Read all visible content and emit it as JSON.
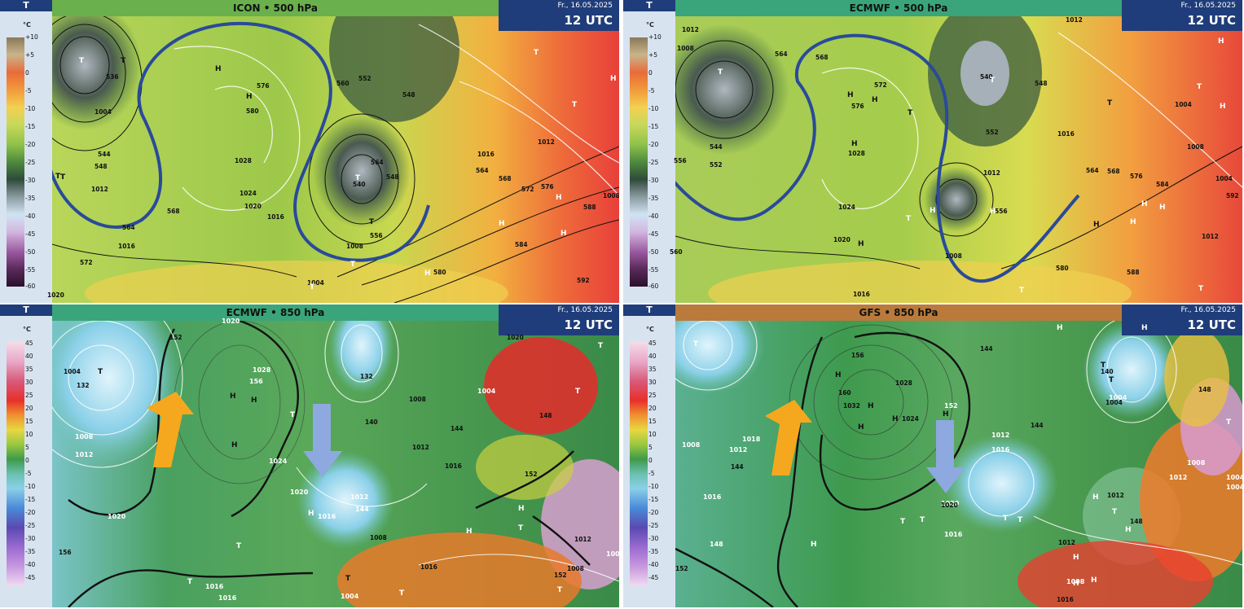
{
  "panels": [
    {
      "legend_title": "T",
      "unit": "°C",
      "title": "ICON • 500 hPa",
      "date": "Fr., 16.05.2025",
      "time": "12 UTC",
      "title_color": "#6ab04c",
      "scale_ticks": [
        "+10",
        "+5",
        "0",
        "-5",
        "-10",
        "-15",
        "-20",
        "-25",
        "-30",
        "-35",
        "-40",
        "-45",
        "-50",
        "-55",
        "-60"
      ],
      "contour_labels": [
        "536",
        "544",
        "548",
        "1004",
        "1012",
        "1016",
        "564",
        "568",
        "572",
        "576",
        "580",
        "1024",
        "1028",
        "1020",
        "1016",
        "540",
        "548",
        "556",
        "564",
        "1008",
        "560",
        "552",
        "548",
        "580",
        "584",
        "588",
        "592",
        "1004",
        "1012",
        "1008",
        "1016",
        "564",
        "568",
        "572",
        "576",
        "1020"
      ],
      "centers": [
        "T",
        "T",
        "T",
        "H",
        "H",
        "T",
        "T",
        "H",
        "H",
        "H",
        "H",
        "T",
        "H",
        "T",
        "T",
        "T"
      ]
    },
    {
      "legend_title": "T",
      "unit": "°C",
      "title": "ECMWF • 500 hPa",
      "date": "Fr., 16.05.2025",
      "time": "12 UTC",
      "title_color": "#3aa57a",
      "scale_ticks": [
        "+10",
        "+5",
        "0",
        "-5",
        "-10",
        "-15",
        "-20",
        "-25",
        "-30",
        "-35",
        "-40",
        "-45",
        "-50",
        "-55",
        "-60"
      ],
      "contour_labels": [
        "1012",
        "1008",
        "556",
        "552",
        "544",
        "564",
        "568",
        "572",
        "576",
        "1028",
        "1024",
        "1020",
        "1016",
        "540",
        "548",
        "552",
        "1012",
        "1016",
        "1012",
        "1004",
        "1008",
        "556",
        "564",
        "568",
        "576",
        "584",
        "592",
        "580",
        "588",
        "1012",
        "1004",
        "1008",
        "560"
      ],
      "centers": [
        "T",
        "T",
        "H",
        "H",
        "H",
        "H",
        "T",
        "T",
        "H",
        "T",
        "H",
        "H",
        "H",
        "T",
        "H",
        "H",
        "T",
        "H",
        "T",
        "H"
      ]
    },
    {
      "legend_title": "T",
      "unit": "°C",
      "title": "ECMWF • 850 hPa",
      "date": "Fr., 16.05.2025",
      "time": "12 UTC",
      "title_color": "#3aa57a",
      "scale_ticks": [
        "45",
        "40",
        "35",
        "30",
        "25",
        "20",
        "15",
        "10",
        "5",
        "0",
        "-5",
        "-10",
        "-15",
        "-20",
        "-25",
        "-30",
        "-35",
        "-40",
        "-45"
      ],
      "contour_labels": [
        "1020",
        "152",
        "1004",
        "132",
        "1008",
        "1012",
        "1020",
        "1028",
        "156",
        "1024",
        "132",
        "140",
        "1008",
        "1012",
        "144",
        "1016",
        "1020",
        "1012",
        "144",
        "1016",
        "1020",
        "1004",
        "148",
        "152",
        "1008",
        "1012",
        "1016",
        "1004",
        "1008",
        "152",
        "156",
        "1016",
        "1016",
        "1004"
      ],
      "centers": [
        "T",
        "T",
        "H",
        "H",
        "H",
        "T",
        "T",
        "H",
        "T",
        "H",
        "H",
        "T",
        "T",
        "T",
        "T",
        "T"
      ]
    },
    {
      "legend_title": "T",
      "unit": "°C",
      "title": "GFS • 850 hPa",
      "date": "Fr., 16.05.2025",
      "time": "12 UTC",
      "title_color": "#b97a3c",
      "scale_ticks": [
        "45",
        "40",
        "35",
        "30",
        "25",
        "20",
        "15",
        "10",
        "5",
        "0",
        "-5",
        "-10",
        "-15",
        "-20",
        "-25",
        "-30",
        "-35",
        "-40",
        "-45"
      ],
      "contour_labels": [
        "156",
        "160",
        "1032",
        "1028",
        "1024",
        "1008",
        "1012",
        "1016",
        "144",
        "148",
        "152",
        "1018",
        "144",
        "1020",
        "1012",
        "1016",
        "140",
        "1004",
        "148",
        "1008",
        "1012",
        "1004",
        "1004",
        "1012",
        "148",
        "1008",
        "1016",
        "152",
        "1020",
        "1004",
        "1016",
        "144",
        "1012"
      ],
      "centers": [
        "T",
        "H",
        "H",
        "H",
        "H",
        "H",
        "T",
        "T",
        "H",
        "T",
        "T",
        "T",
        "H",
        "T",
        "H",
        "H",
        "T",
        "H",
        "H",
        "H",
        "H",
        "T"
      ]
    }
  ]
}
